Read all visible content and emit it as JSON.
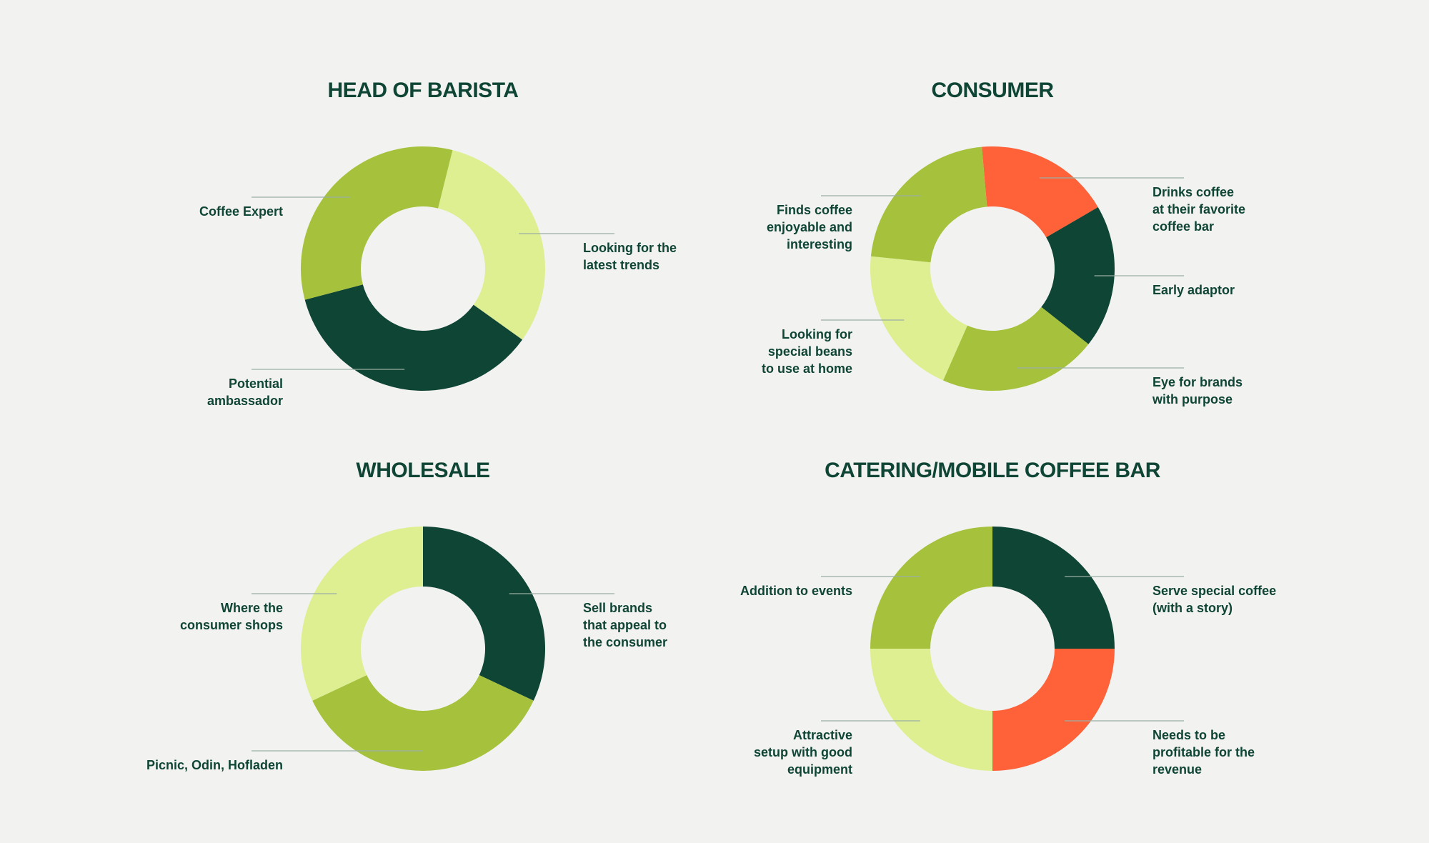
{
  "colors": {
    "dark_green": "#0f4535",
    "olive_green": "#a6c23c",
    "light_green": "#ddef91",
    "orange": "#ff6138",
    "leader_line": "#9aaea5",
    "background": "#f2f2f1"
  },
  "chart_data": [
    {
      "type": "pie",
      "title": "HEAD OF BARISTA",
      "slices": [
        {
          "label": "Looking for the\nlatest trends",
          "value": 31,
          "color": "#ddef91",
          "side": "right"
        },
        {
          "label": "Potential\nambassador",
          "value": 36,
          "color": "#0f4535",
          "side": "left"
        },
        {
          "label": "Coffee Expert",
          "value": 33,
          "color": "#a6c23c",
          "side": "left"
        }
      ],
      "start_angle_deg": 14
    },
    {
      "type": "pie",
      "title": "CONSUMER",
      "slices": [
        {
          "label": "Drinks coffee\nat their favorite\ncoffee bar",
          "value": 18,
          "color": "#ff6138",
          "side": "right"
        },
        {
          "label": "Early adaptor",
          "value": 19,
          "color": "#0f4535",
          "side": "right"
        },
        {
          "label": "Eye for brands\nwith purpose",
          "value": 21,
          "color": "#a6c23c",
          "side": "right"
        },
        {
          "label": "Looking for\nspecial beans\nto use at home",
          "value": 20,
          "color": "#ddef91",
          "side": "left"
        },
        {
          "label": "Finds coffee\nenjoyable and\ninteresting",
          "value": 22,
          "color": "#a6c23c",
          "side": "left"
        }
      ],
      "start_angle_deg": -5
    },
    {
      "type": "pie",
      "title": "WHOLESALE",
      "slices": [
        {
          "label": "Sell brands\nthat appeal to\nthe consumer",
          "value": 32,
          "color": "#0f4535",
          "side": "right"
        },
        {
          "label": "Picnic, Odin, Hofladen",
          "value": 36,
          "color": "#a6c23c",
          "side": "left"
        },
        {
          "label": "Where the\nconsumer shops",
          "value": 32,
          "color": "#ddef91",
          "side": "left"
        }
      ],
      "start_angle_deg": 0
    },
    {
      "type": "pie",
      "title": "CATERING/MOBILE COFFEE BAR",
      "slices": [
        {
          "label": "Serve special coffee\n(with a story)",
          "value": 25,
          "color": "#0f4535",
          "side": "right"
        },
        {
          "label": "Needs to be\nprofitable for the\nrevenue",
          "value": 25,
          "color": "#ff6138",
          "side": "right"
        },
        {
          "label": "Attractive\nsetup with good\nequipment",
          "value": 25,
          "color": "#ddef91",
          "side": "left"
        },
        {
          "label": "Addition to events",
          "value": 25,
          "color": "#a6c23c",
          "side": "left"
        }
      ],
      "start_angle_deg": 0
    }
  ]
}
